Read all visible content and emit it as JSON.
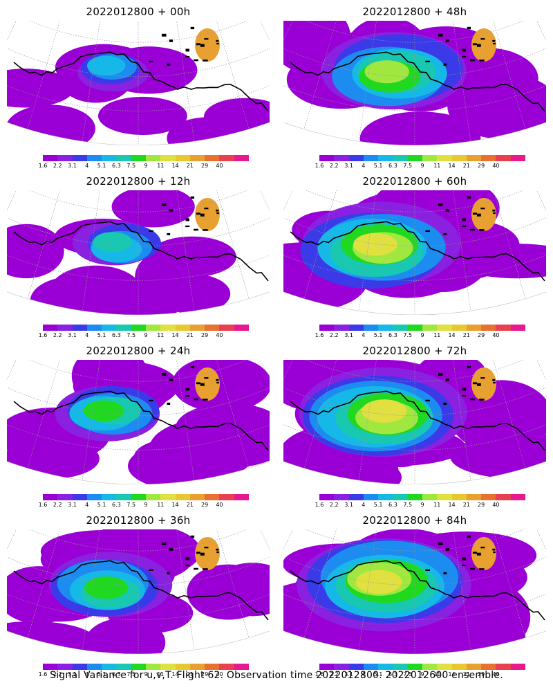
{
  "panels": [
    {
      "title": "2022012800  +  00h",
      "blob": 0.3,
      "seed": 1
    },
    {
      "title": "2022012800  +  48h",
      "blob": 0.75,
      "seed": 2
    },
    {
      "title": "2022012800  +  12h",
      "blob": 0.38,
      "seed": 3
    },
    {
      "title": "2022012800  +  60h",
      "blob": 0.82,
      "seed": 4
    },
    {
      "title": "2022012800  +  24h",
      "blob": 0.5,
      "seed": 5
    },
    {
      "title": "2022012800  +  72h",
      "blob": 0.88,
      "seed": 6
    },
    {
      "title": "2022012800  +  36h",
      "blob": 0.62,
      "seed": 7
    },
    {
      "title": "2022012800  +  84h",
      "blob": 0.92,
      "seed": 8
    }
  ],
  "colorbar": {
    "colors": [
      "#9a00d6",
      "#8a20e0",
      "#3a3ae8",
      "#1c8cf0",
      "#16b8e8",
      "#18c8b0",
      "#20d820",
      "#a0e840",
      "#e0e040",
      "#e8c830",
      "#e8a030",
      "#e87030",
      "#e84050",
      "#e81890"
    ],
    "labels": [
      "1.6",
      "2.2",
      "3.1",
      "4",
      "5.1",
      "6.3",
      "7.5",
      "9",
      "11",
      "14",
      "21",
      "29",
      "40"
    ]
  },
  "caption": "Signal Variance for u,v,T. Flight 62. Observation time 2022012800. 2022012600 ensemble."
}
